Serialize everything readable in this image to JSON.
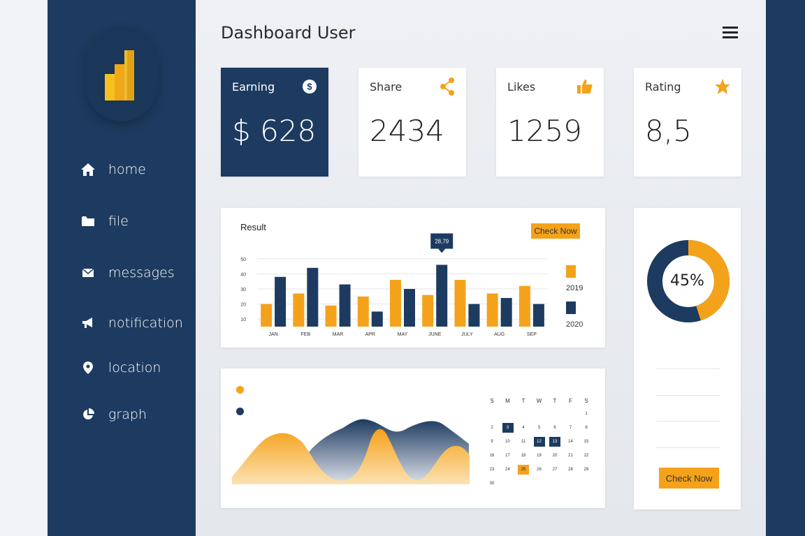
{
  "colors": {
    "navy": "#1d3b60",
    "orange": "#f5a21b",
    "white": "#ffffff"
  },
  "header": {
    "title": "Dashboard User",
    "menu_icon": "hamburger-menu-icon"
  },
  "sidebar": {
    "logo_icon": "bar-chart-logo-icon",
    "items": [
      {
        "label": "home",
        "icon": "home-icon"
      },
      {
        "label": "file",
        "icon": "folder-icon"
      },
      {
        "label": "messages",
        "icon": "envelope-icon"
      },
      {
        "label": "notification",
        "icon": "megaphone-icon"
      },
      {
        "label": "location",
        "icon": "map-pin-icon"
      },
      {
        "label": "graph",
        "icon": "pie-chart-icon"
      }
    ]
  },
  "stats": [
    {
      "label": "Earning",
      "value": "$ 628",
      "icon": "dollar-icon"
    },
    {
      "label": "Share",
      "value": "2434",
      "icon": "share-icon"
    },
    {
      "label": "Likes",
      "value": "1259",
      "icon": "thumbs-up-icon"
    },
    {
      "label": "Rating",
      "value": "8,5",
      "icon": "star-icon"
    }
  ],
  "result": {
    "title": "Result",
    "button_label": "Check Now",
    "tooltip": "28,79"
  },
  "chart_data": {
    "type": "bar",
    "title": "Result",
    "categories": [
      "JAN",
      "FEB",
      "MAR",
      "APR",
      "MAY",
      "JUNE",
      "JULY",
      "AUG",
      "SEP"
    ],
    "series": [
      {
        "name": "2019",
        "color": "#f5a21b",
        "values": [
          20,
          27,
          19,
          25,
          36,
          26,
          36,
          27,
          32
        ]
      },
      {
        "name": "2020",
        "color": "#1d3b60",
        "values": [
          38,
          44,
          33,
          15,
          30,
          46,
          20,
          24,
          20
        ]
      }
    ],
    "yticks": [
      10,
      20,
      30,
      40,
      50
    ],
    "ylim": [
      5,
      55
    ],
    "grid": true,
    "legend": "right"
  },
  "donut": {
    "value": 45,
    "label": "45%",
    "button_label": "Check Now"
  },
  "calendar": {
    "days": [
      "S",
      "M",
      "T",
      "W",
      "T",
      "F",
      "S"
    ],
    "weeks": [
      [
        "",
        "",
        "",
        "",
        "",
        "",
        "1"
      ],
      [
        "2",
        "3",
        "4",
        "5",
        "6",
        "7",
        "8"
      ],
      [
        "9",
        "10",
        "11",
        "12",
        "13",
        "14",
        "15"
      ],
      [
        "16",
        "17",
        "18",
        "19",
        "20",
        "21",
        "22"
      ],
      [
        "23",
        "24",
        "25",
        "26",
        "27",
        "28",
        "29"
      ],
      [
        "30",
        "",
        "",
        "",
        "",
        "",
        ""
      ]
    ],
    "highlight_blue": [
      "3",
      "12",
      "13"
    ],
    "highlight_orange": [
      "25"
    ]
  }
}
